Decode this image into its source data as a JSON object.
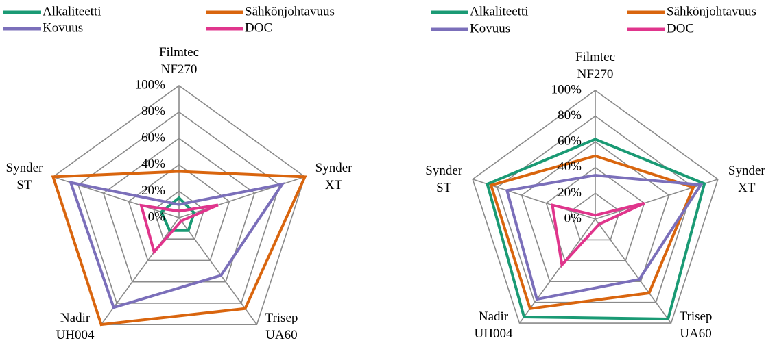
{
  "chart_data": [
    {
      "type": "radar",
      "categories": [
        "Filmtec\nNF270",
        "Synder\nXT",
        "Trisep\nUA60",
        "Nadir\nUH004",
        "Synder\nST"
      ],
      "ylim": [
        0,
        100
      ],
      "yticks": [
        {
          "value": 0,
          "label": "0%"
        },
        {
          "value": 20,
          "label": "20%"
        },
        {
          "value": 40,
          "label": "40%"
        },
        {
          "value": 60,
          "label": "60%"
        },
        {
          "value": 80,
          "label": "80%"
        },
        {
          "value": 100,
          "label": "100%"
        }
      ],
      "grid": true,
      "legend": "top",
      "series": [
        {
          "name": "Alkaliteetti",
          "color": "#1a9a74",
          "values": [
            15,
            12,
            12,
            12,
            14
          ]
        },
        {
          "name": "Sähkönjohtavuus",
          "color": "#d9650e",
          "values": [
            35,
            100,
            85,
            100,
            100
          ]
        },
        {
          "name": "Kovuus",
          "color": "#7b6fba",
          "values": [
            10,
            82,
            54,
            84,
            86
          ]
        },
        {
          "name": "DOC",
          "color": "#e0358c",
          "values": [
            5,
            31,
            3,
            32,
            30
          ]
        }
      ]
    },
    {
      "type": "radar",
      "categories": [
        "Filmtec\nNF270",
        "Synder\nXT",
        "Trisep\nUA60",
        "Nadir\nUH004",
        "Synder\nST"
      ],
      "ylim": [
        0,
        100
      ],
      "yticks": [
        {
          "value": 0,
          "label": "0%"
        },
        {
          "value": 20,
          "label": "20%"
        },
        {
          "value": 40,
          "label": "40%"
        },
        {
          "value": 60,
          "label": "60%"
        },
        {
          "value": 80,
          "label": "80%"
        },
        {
          "value": 100,
          "label": "100%"
        }
      ],
      "grid": true,
      "legend": "top",
      "series": [
        {
          "name": "Alkaliteetti",
          "color": "#1a9a74",
          "values": [
            62,
            89,
            96,
            94,
            88
          ]
        },
        {
          "name": "Sähkönjohtavuus",
          "color": "#d9650e",
          "values": [
            49,
            80,
            71,
            86,
            85
          ]
        },
        {
          "name": "Kovuus",
          "color": "#7b6fba",
          "values": [
            34,
            86,
            58,
            77,
            72
          ]
        },
        {
          "name": "DOC",
          "color": "#e0358c",
          "values": [
            3,
            40,
            5,
            44,
            35
          ]
        }
      ]
    }
  ]
}
